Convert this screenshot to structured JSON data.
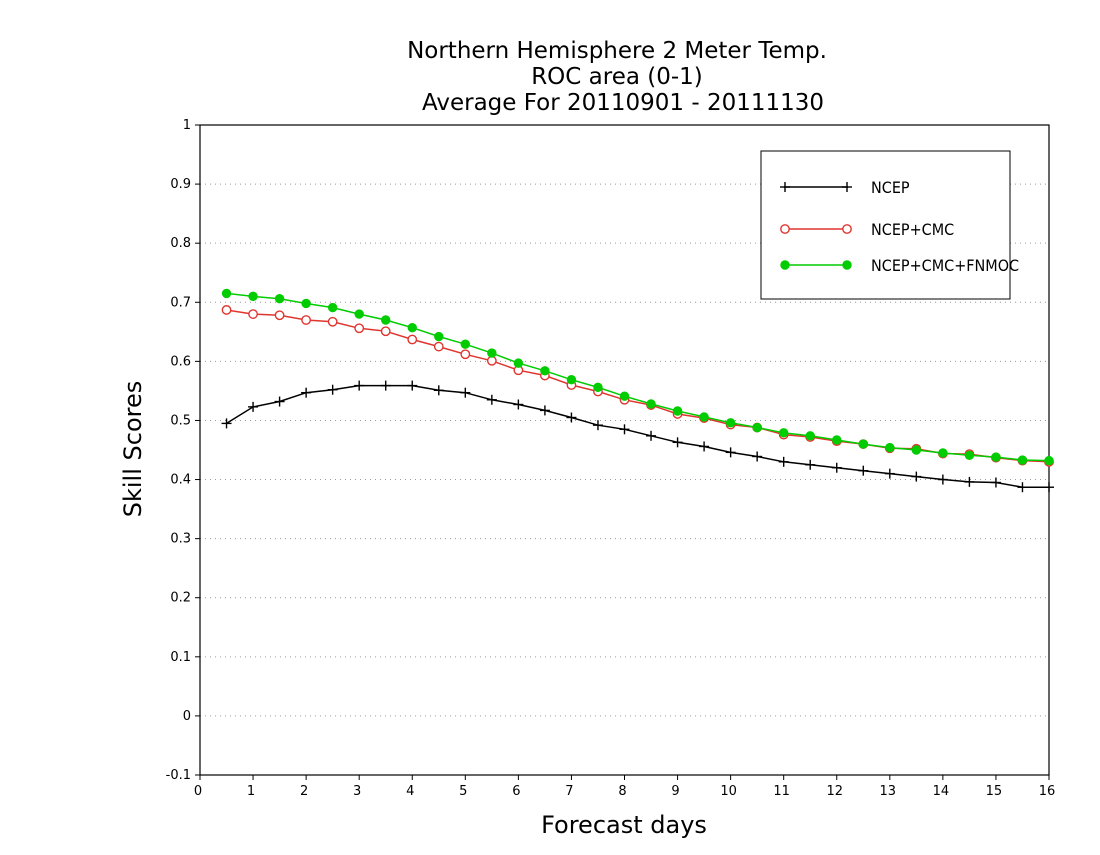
{
  "chart_data": {
    "type": "line",
    "title_lines": [
      "Northern Hemisphere 2 Meter Temp.",
      "ROC area (0-1)",
      "Average For 20110901 - 20111130"
    ],
    "xlabel": "Forecast days",
    "ylabel": "Skill Scores",
    "xlim": [
      0,
      16
    ],
    "ylim": [
      -0.1,
      1
    ],
    "x_ticks": [
      0,
      1,
      2,
      3,
      4,
      5,
      6,
      7,
      8,
      9,
      10,
      11,
      12,
      13,
      14,
      15,
      16
    ],
    "x_tick_labels": [
      "0",
      "1",
      "2",
      "3",
      "4",
      "5",
      "6",
      "7",
      "8",
      "9",
      "10",
      "11",
      "12",
      "13",
      "14",
      "15",
      "16"
    ],
    "y_ticks": [
      -0.1,
      0,
      0.1,
      0.2,
      0.3,
      0.4,
      0.5,
      0.6,
      0.7,
      0.8,
      0.9,
      1
    ],
    "y_tick_labels": [
      "-0.1",
      "0",
      "0.1",
      "0.2",
      "0.3",
      "0.4",
      "0.5",
      "0.6",
      "0.7",
      "0.8",
      "0.9",
      "1"
    ],
    "grid": "horizontal-dotted",
    "legend_position": "top-right",
    "x": [
      0.5,
      1,
      1.5,
      2,
      2.5,
      3,
      3.5,
      4,
      4.5,
      5,
      5.5,
      6,
      6.5,
      7,
      7.5,
      8,
      8.5,
      9,
      9.5,
      10,
      10.5,
      11,
      11.5,
      12,
      12.5,
      13,
      13.5,
      14,
      14.5,
      15,
      15.5,
      16
    ],
    "series": [
      {
        "name": "NCEP",
        "color": "#000000",
        "marker": "plus",
        "values": [
          0.495,
          0.523,
          0.532,
          0.547,
          0.552,
          0.559,
          0.559,
          0.559,
          0.551,
          0.547,
          0.535,
          0.527,
          0.517,
          0.505,
          0.492,
          0.485,
          0.474,
          0.463,
          0.456,
          0.446,
          0.439,
          0.43,
          0.425,
          0.42,
          0.415,
          0.41,
          0.405,
          0.4,
          0.396,
          0.395,
          0.387,
          0.387
        ]
      },
      {
        "name": "NCEP+CMC",
        "color": "#e0352f",
        "marker": "open-circle",
        "values": [
          0.687,
          0.68,
          0.678,
          0.67,
          0.667,
          0.656,
          0.651,
          0.637,
          0.625,
          0.612,
          0.601,
          0.585,
          0.576,
          0.56,
          0.549,
          0.535,
          0.526,
          0.511,
          0.504,
          0.493,
          0.488,
          0.476,
          0.472,
          0.465,
          0.46,
          0.453,
          0.452,
          0.444,
          0.443,
          0.437,
          0.432,
          0.43
        ]
      },
      {
        "name": "NCEP+CMC+FNMOC",
        "color": "#00cc00",
        "marker": "filled-circle",
        "values": [
          0.715,
          0.71,
          0.706,
          0.698,
          0.691,
          0.68,
          0.67,
          0.657,
          0.642,
          0.629,
          0.614,
          0.597,
          0.584,
          0.569,
          0.556,
          0.541,
          0.528,
          0.516,
          0.506,
          0.496,
          0.488,
          0.479,
          0.474,
          0.467,
          0.46,
          0.454,
          0.45,
          0.445,
          0.441,
          0.438,
          0.433,
          0.432
        ]
      }
    ]
  }
}
